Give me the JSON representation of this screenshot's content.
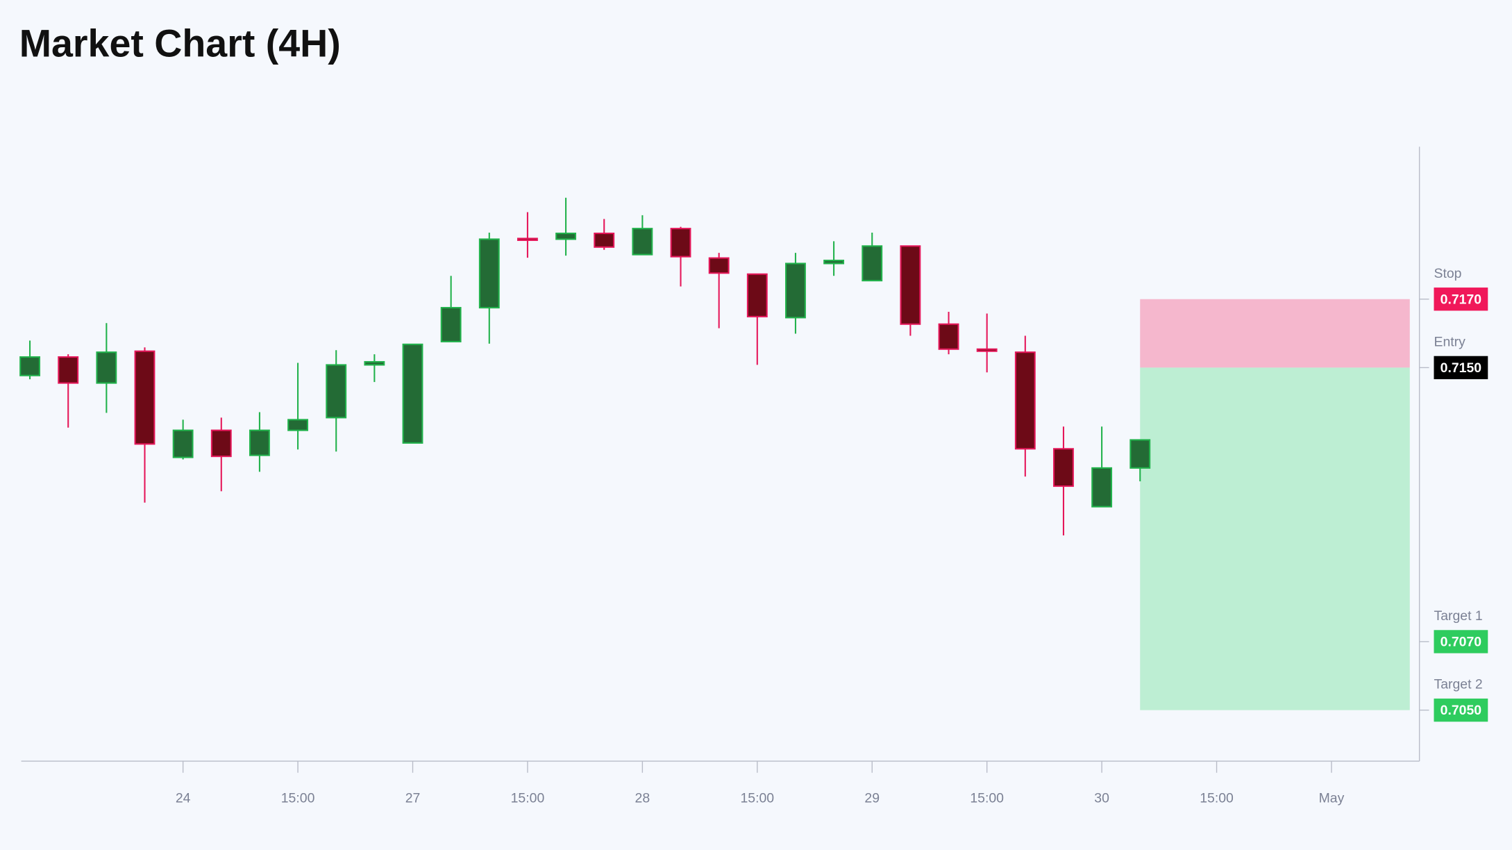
{
  "chart_data": {
    "type": "candlestick",
    "title": "Market Chart (4H)",
    "categories": [
      null,
      null,
      null,
      null,
      "24",
      null,
      null,
      "15:00",
      null,
      null,
      "27",
      null,
      null,
      "15:00",
      null,
      null,
      "28",
      null,
      null,
      "15:00",
      null,
      null,
      "29",
      null,
      null,
      "15:00",
      null,
      null,
      "30",
      null,
      null,
      "15:00",
      null,
      null,
      "May"
    ],
    "open": [
      0.71477,
      0.71531,
      0.71455,
      0.71548,
      0.71238,
      0.71317,
      0.71244,
      0.71317,
      0.71354,
      0.71508,
      0.7128,
      0.71576,
      0.71675,
      0.71877,
      0.71875,
      0.71892,
      0.7183,
      0.71906,
      0.7182,
      0.71773,
      0.71646,
      0.71804,
      0.71754,
      0.71855,
      0.71627,
      0.71554,
      0.71545,
      0.71263,
      0.71094,
      0.71207,
      null,
      null,
      null,
      null,
      null
    ],
    "high": [
      0.71579,
      0.71539,
      0.7163,
      0.71559,
      0.71348,
      0.71354,
      0.7137,
      0.71514,
      0.71551,
      0.71539,
      0.71568,
      0.71768,
      0.71894,
      0.71954,
      0.71996,
      0.71934,
      0.71945,
      0.71911,
      0.71835,
      0.71773,
      0.71835,
      0.71869,
      0.71894,
      0.71855,
      0.71663,
      0.71658,
      0.71593,
      0.71328,
      0.71328,
      0.71289,
      null,
      null,
      null,
      null,
      null
    ],
    "low": [
      0.71466,
      0.71325,
      0.71368,
      0.71106,
      0.71232,
      0.71139,
      0.71196,
      0.71261,
      0.71255,
      0.71458,
      0.7128,
      0.71576,
      0.7157,
      0.71821,
      0.71827,
      0.71844,
      0.7183,
      0.71737,
      0.71615,
      0.71508,
      0.71599,
      0.71768,
      0.71754,
      0.71593,
      0.71539,
      0.71486,
      0.71182,
      0.7101,
      0.71094,
      0.71168,
      null,
      null,
      null,
      null,
      null
    ],
    "close": [
      0.71531,
      0.71455,
      0.71545,
      0.71277,
      0.71317,
      0.71241,
      0.71317,
      0.71348,
      0.71508,
      0.71517,
      0.71568,
      0.71675,
      0.71875,
      0.71872,
      0.71892,
      0.71852,
      0.71906,
      0.71824,
      0.71776,
      0.71649,
      0.71804,
      0.71813,
      0.71855,
      0.71627,
      0.71554,
      0.71548,
      0.71263,
      0.71154,
      0.71207,
      0.71289,
      null,
      null,
      null,
      null,
      null
    ],
    "up_color": "#22b24c",
    "up_fill": "#236b35",
    "down_color": "#e5175a",
    "down_fill": "#6d0a17",
    "ylim": [
      0.70351,
      0.72145
    ],
    "levels": [
      {
        "name": "Stop",
        "value": 0.717,
        "label": "0.7170",
        "color": "#f0185a"
      },
      {
        "name": "Entry",
        "value": 0.715,
        "label": "0.7150",
        "color": "#000000"
      },
      {
        "name": "Target 1",
        "value": 0.707,
        "label": "0.7070",
        "color": "#2ecc5e"
      },
      {
        "name": "Target 2",
        "value": 0.705,
        "label": "0.7050",
        "color": "#2ecc5e"
      }
    ],
    "risk_color": "#f5b7cd",
    "reward_color": "#bdeed3"
  }
}
